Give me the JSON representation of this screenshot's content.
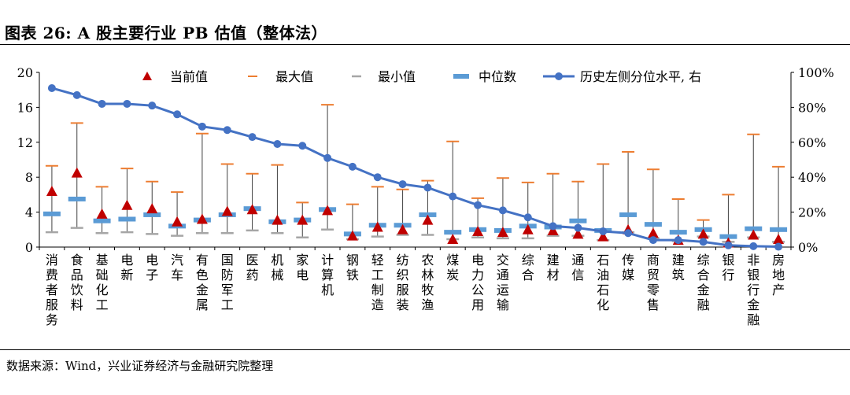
{
  "title": "图表 26:  A 股主要行业 PB 估值（整体法）",
  "source": "数据来源：Wind，兴业证券经济与金融研究院整理",
  "colors": {
    "current": "#C00000",
    "max": "#ED7D31",
    "min": "#A6A6A6",
    "median": "#5B9BD5",
    "percentile": "#4472C4",
    "whisker": "#404040"
  },
  "chart_data": {
    "type": "box-range-with-line",
    "title": "A 股主要行业 PB 估值（整体法）",
    "legend": {
      "current": "当前值",
      "max": "最大值",
      "min": "最小值",
      "median": "中位数",
      "percentile": "历史左侧分位水平, 右"
    },
    "left_axis": {
      "ylim": [
        0,
        20
      ],
      "ticks": [
        "0",
        "4",
        "8",
        "12",
        "16",
        "20"
      ]
    },
    "right_axis": {
      "ylim": [
        0,
        1
      ],
      "ticks": [
        "0%",
        "20%",
        "40%",
        "60%",
        "80%",
        "100%"
      ]
    },
    "categories": [
      "消费者服务",
      "食品饮料",
      "基础化工",
      "电新",
      "电子",
      "汽车",
      "有色金属",
      "国防军工",
      "医药",
      "机械",
      "家电",
      "计算机",
      "钢铁",
      "轻工制造",
      "纺织服装",
      "农林牧渔",
      "煤炭",
      "电力公用",
      "交通运输",
      "综合",
      "建材",
      "通信",
      "石油石化",
      "传媒",
      "商贸零售",
      "建筑",
      "综合金融",
      "银行",
      "非银行金融",
      "房地产"
    ],
    "current": [
      6.4,
      8.5,
      3.8,
      4.8,
      4.4,
      2.9,
      3.2,
      4.1,
      4.3,
      3.1,
      3.1,
      4.2,
      1.3,
      2.3,
      2.0,
      3.1,
      0.9,
      1.8,
      1.7,
      2.0,
      1.9,
      1.5,
      1.2,
      2.0,
      1.6,
      0.8,
      1.5,
      0.5,
      1.4,
      0.9
    ],
    "max": [
      9.3,
      14.2,
      6.9,
      9.0,
      7.5,
      6.3,
      13.0,
      9.5,
      8.4,
      9.4,
      5.1,
      16.3,
      4.9,
      6.9,
      6.6,
      7.6,
      12.1,
      5.6,
      7.9,
      7.4,
      8.4,
      7.5,
      9.5,
      10.9,
      8.9,
      5.5,
      3.1,
      6.0,
      12.9,
      9.2
    ],
    "min": [
      1.7,
      2.2,
      1.6,
      1.7,
      1.5,
      1.3,
      1.6,
      1.6,
      1.9,
      1.6,
      1.1,
      2.0,
      0.9,
      1.2,
      1.4,
      1.4,
      0.9,
      1.1,
      1.0,
      1.0,
      1.3,
      1.3,
      0.8,
      1.7,
      1.0,
      0.7,
      1.2,
      0.6,
      1.1,
      0.6
    ],
    "median": [
      3.8,
      5.5,
      3.0,
      3.2,
      3.7,
      2.4,
      3.1,
      3.7,
      4.4,
      2.9,
      3.1,
      4.3,
      1.5,
      2.5,
      2.5,
      3.7,
      1.7,
      2.0,
      1.9,
      2.4,
      2.3,
      3.0,
      1.9,
      3.7,
      2.6,
      1.7,
      2.0,
      1.2,
      2.1,
      2.0
    ],
    "percentile": [
      0.91,
      0.87,
      0.82,
      0.82,
      0.81,
      0.76,
      0.69,
      0.67,
      0.63,
      0.59,
      0.58,
      0.51,
      0.46,
      0.4,
      0.36,
      0.34,
      0.29,
      0.24,
      0.21,
      0.17,
      0.12,
      0.11,
      0.09,
      0.08,
      0.04,
      0.04,
      0.03,
      0.01,
      0.005,
      0.002
    ]
  }
}
